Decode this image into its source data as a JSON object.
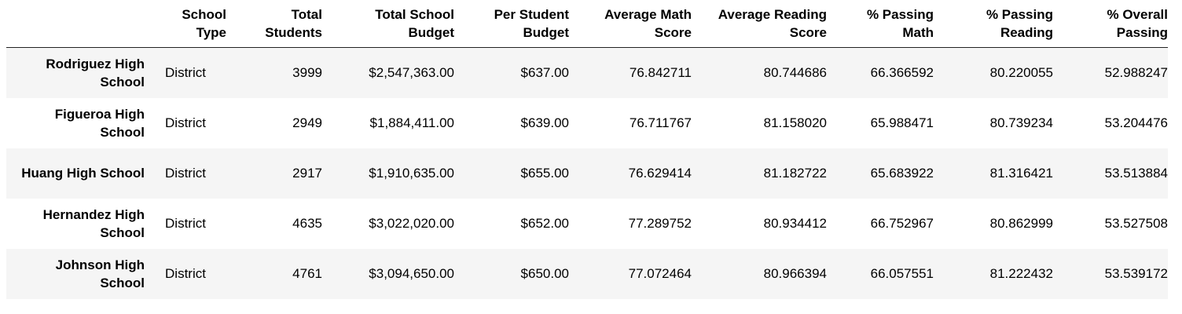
{
  "table": {
    "columns": [
      "",
      "School\nType",
      "Total\nStudents",
      "Total School\nBudget",
      "Per Student\nBudget",
      "Average Math\nScore",
      "Average Reading\nScore",
      "% Passing\nMath",
      "% Passing\nReading",
      "% Overall\nPassing"
    ],
    "rows": [
      {
        "school": "Rodriguez High School",
        "cells": [
          "District",
          "3999",
          "$2,547,363.00",
          "$637.00",
          "76.842711",
          "80.744686",
          "66.366592",
          "80.220055",
          "52.988247"
        ]
      },
      {
        "school": "Figueroa High School",
        "cells": [
          "District",
          "2949",
          "$1,884,411.00",
          "$639.00",
          "76.711767",
          "81.158020",
          "65.988471",
          "80.739234",
          "53.204476"
        ]
      },
      {
        "school": "Huang High School",
        "cells": [
          "District",
          "2917",
          "$1,910,635.00",
          "$655.00",
          "76.629414",
          "81.182722",
          "65.683922",
          "81.316421",
          "53.513884"
        ]
      },
      {
        "school": "Hernandez High School",
        "cells": [
          "District",
          "4635",
          "$3,022,020.00",
          "$652.00",
          "77.289752",
          "80.934412",
          "66.752967",
          "80.862999",
          "53.527508"
        ]
      },
      {
        "school": "Johnson High School",
        "cells": [
          "District",
          "4761",
          "$3,094,650.00",
          "$650.00",
          "77.072464",
          "80.966394",
          "66.057551",
          "81.222432",
          "53.539172"
        ]
      }
    ]
  },
  "colors": {
    "stripe": "#f5f5f5",
    "header_rule": "#222222",
    "text": "#000000"
  }
}
